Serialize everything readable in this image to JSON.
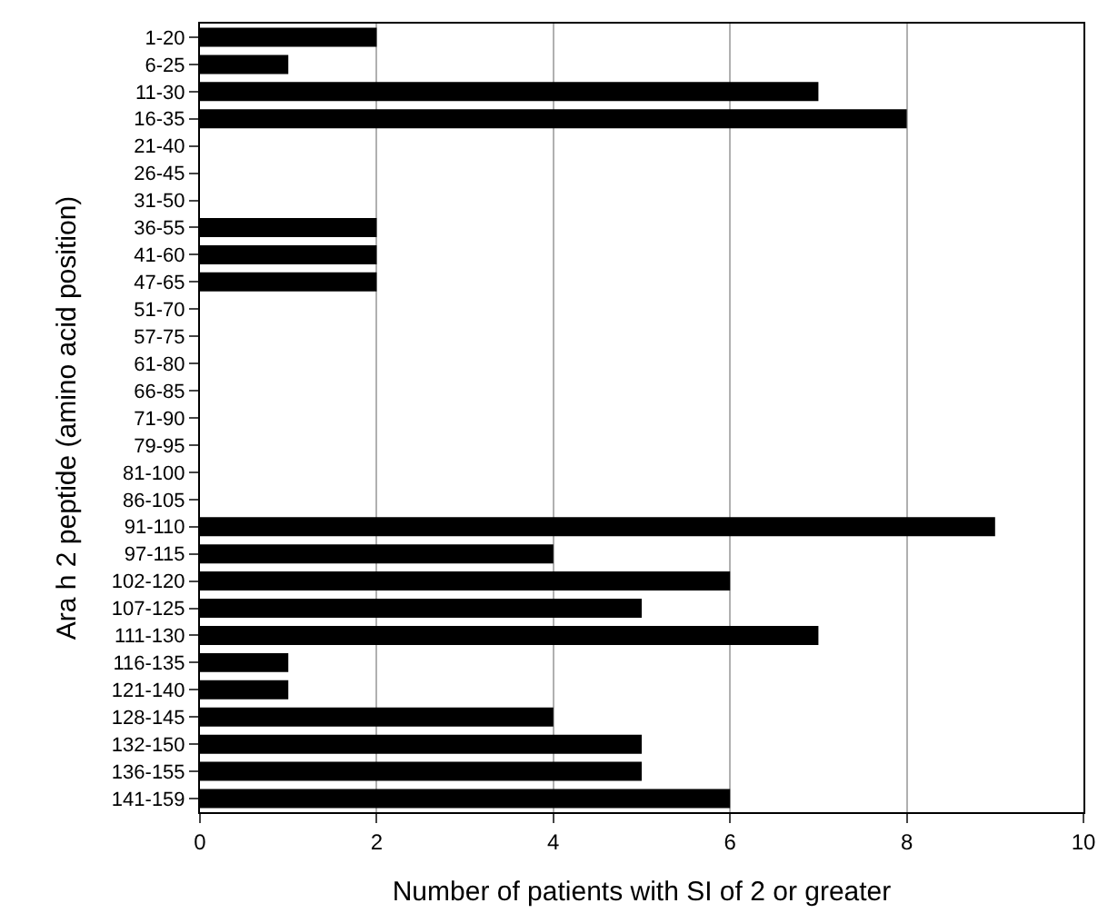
{
  "chart_data": {
    "type": "bar",
    "orientation": "horizontal",
    "xlabel": "Number of patients with SI of 2 or greater",
    "ylabel": "Ara h 2 peptide (amino acid position)",
    "categories": [
      "1-20",
      "6-25",
      "11-30",
      "16-35",
      "21-40",
      "26-45",
      "31-50",
      "36-55",
      "41-60",
      "47-65",
      "51-70",
      "57-75",
      "61-80",
      "66-85",
      "71-90",
      "79-95",
      "81-100",
      "86-105",
      "91-110",
      "97-115",
      "102-120",
      "107-125",
      "111-130",
      "116-135",
      "121-140",
      "128-145",
      "132-150",
      "136-155",
      "141-159"
    ],
    "values": [
      2,
      1,
      7,
      8,
      0,
      0,
      0,
      2,
      2,
      2,
      0,
      0,
      0,
      0,
      0,
      0,
      0,
      0,
      9,
      4,
      6,
      5,
      7,
      1,
      1,
      4,
      5,
      5,
      6
    ],
    "color": "#000000",
    "xlim": [
      0,
      10
    ],
    "xticks": [
      0,
      2,
      4,
      6,
      8,
      10
    ],
    "grid": "x",
    "legend": false
  }
}
